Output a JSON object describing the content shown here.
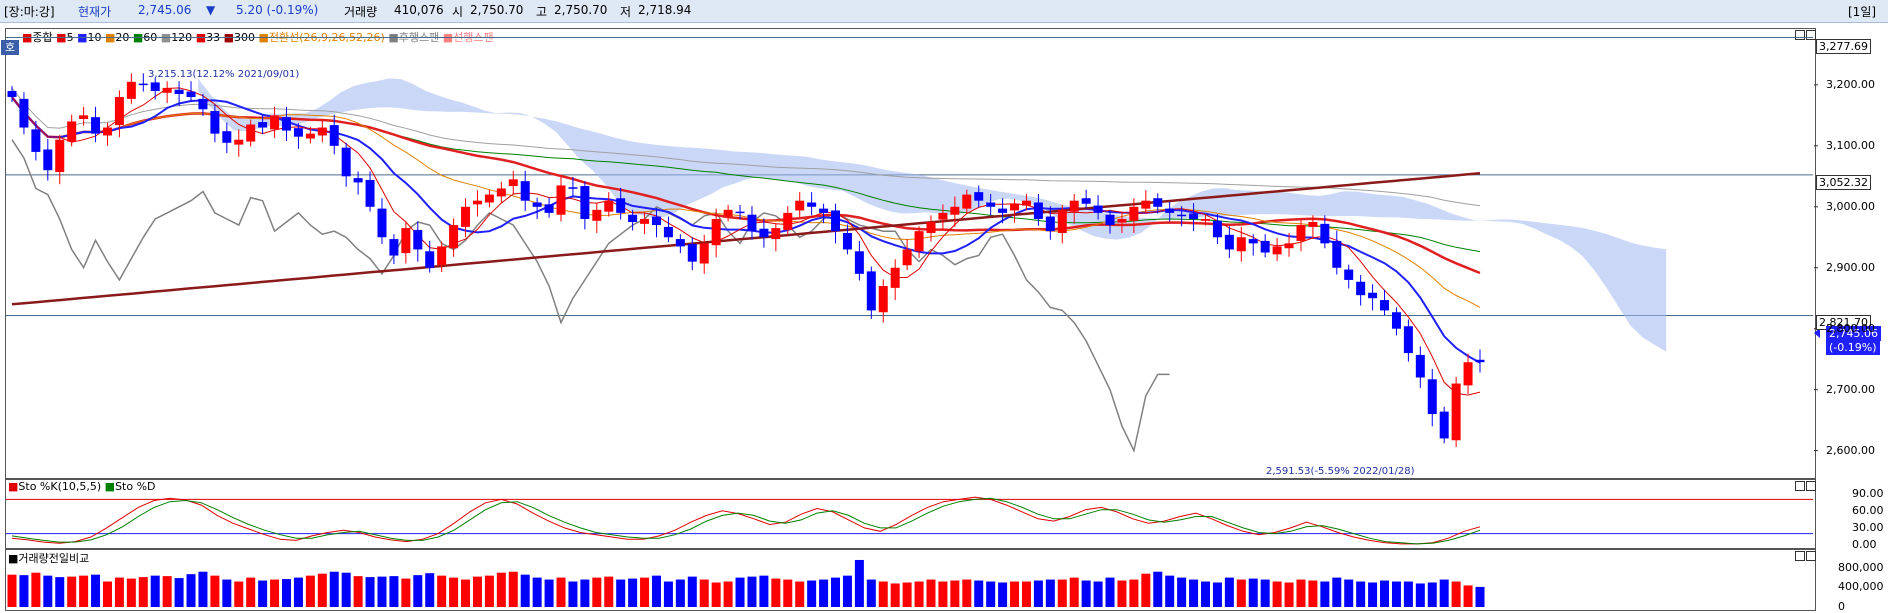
{
  "header": {
    "market": "[장:마:강]",
    "price_label": "현재가",
    "price": "2,745.06",
    "arrow": "▼",
    "change": "5.20 (-0.19%)",
    "volume_label": "거래량",
    "volume": "410,076",
    "open_label": "시",
    "open": "2,750.70",
    "high_label": "고",
    "high": "2,750.70",
    "low_label": "저",
    "low": "2,718.94",
    "period": "[1일]"
  },
  "price_panel": {
    "tab": "호",
    "legend": [
      "종합",
      "5",
      "10",
      "20",
      "60",
      "120",
      "33",
      "300",
      "전환선(26,9,26,52,26)",
      "후행스팬",
      "선행스팬"
    ],
    "legend_colors": [
      "#e00000",
      "#e00000",
      "#2020ff",
      "#e08000",
      "#008000",
      "#909090",
      "#e00000",
      "#a00000",
      "#e08000",
      "#808080",
      "#ff8080"
    ],
    "hlines": [
      {
        "value": 3277.69,
        "label": "3,277.69"
      },
      {
        "value": 3052.32,
        "label": "3,052.32"
      },
      {
        "value": 2821.7,
        "label": "2,821.70"
      }
    ],
    "current_label": "2,745.06",
    "current_change_label": "(-0.19%)",
    "high_annotation": "3,215.13(12.12% 2021/09/01)",
    "low_annotation": "2,591.53(-5.59% 2022/01/28)"
  },
  "chart_data": [
    {
      "type": "candlestick",
      "title": "",
      "ylim": [
        2560,
        3290
      ],
      "yticks": [
        "3,200.00",
        "3,100.00",
        "3,000.00",
        "2,900.00",
        "2,800.00",
        "2,700.00",
        "2,600.00"
      ],
      "ytick_values": [
        3200,
        3100,
        3000,
        2900,
        2800,
        2700,
        2600
      ],
      "close": [
        3180,
        3130,
        3090,
        3060,
        3110,
        3140,
        3150,
        3120,
        3130,
        3180,
        3205,
        3200,
        3190,
        3195,
        3185,
        3180,
        3160,
        3120,
        3105,
        3110,
        3135,
        3130,
        3150,
        3125,
        3115,
        3120,
        3130,
        3100,
        3050,
        3040,
        3000,
        2950,
        2920,
        2965,
        2930,
        2900,
        2935,
        2970,
        3000,
        3010,
        3020,
        3030,
        3045,
        3010,
        3000,
        2990,
        3035,
        3030,
        2980,
        2995,
        3010,
        2990,
        2975,
        2980,
        2970,
        2950,
        2935,
        2910,
        2940,
        2980,
        2995,
        2990,
        2960,
        2950,
        2965,
        2990,
        3010,
        3000,
        2990,
        2960,
        2930,
        2890,
        2830,
        2870,
        2900,
        2930,
        2960,
        2975,
        2990,
        3000,
        3020,
        3010,
        3000,
        2990,
        3005,
        3010,
        2980,
        2960,
        2995,
        3010,
        3005,
        2990,
        2970,
        2980,
        3000,
        3010,
        3000,
        2990,
        2985,
        2980,
        2980,
        2950,
        2930,
        2950,
        2940,
        2925,
        2935,
        2940,
        2970,
        2975,
        2940,
        2900,
        2880,
        2855,
        2850,
        2830,
        2800,
        2760,
        2720,
        2660,
        2620,
        2710,
        2745,
        2745.06
      ],
      "panel": "price"
    },
    {
      "type": "line",
      "title": "",
      "legend": [
        "Sto %K(10,5,5)",
        "Sto %D"
      ],
      "yticks": [
        "90.00",
        "60.00",
        "30.00",
        "0.00"
      ],
      "ytick_values": [
        90,
        60,
        30,
        0
      ],
      "ylim": [
        0,
        100
      ],
      "series": [
        {
          "name": "Sto %K(10,5,5)",
          "values": [
            12,
            9,
            5,
            3,
            6,
            14,
            30,
            48,
            66,
            78,
            82,
            79,
            70,
            52,
            38,
            28,
            18,
            10,
            8,
            16,
            22,
            26,
            22,
            14,
            9,
            6,
            10,
            20,
            38,
            58,
            74,
            80,
            72,
            56,
            42,
            30,
            22,
            18,
            14,
            10,
            10,
            16,
            26,
            40,
            52,
            60,
            55,
            46,
            36,
            40,
            54,
            64,
            58,
            44,
            30,
            24,
            36,
            52,
            66,
            76,
            80,
            84,
            80,
            70,
            58,
            46,
            42,
            50,
            62,
            66,
            58,
            46,
            38,
            42,
            50,
            56,
            46,
            34,
            24,
            18,
            22,
            30,
            40,
            32,
            22,
            14,
            8,
            4,
            2,
            2,
            4,
            12,
            24,
            32
          ]
        },
        {
          "name": "Sto %D",
          "values": [
            16,
            12,
            8,
            5,
            5,
            9,
            18,
            32,
            50,
            66,
            76,
            78,
            74,
            62,
            48,
            36,
            26,
            18,
            12,
            12,
            18,
            22,
            24,
            18,
            12,
            8,
            8,
            14,
            26,
            44,
            62,
            74,
            76,
            66,
            52,
            40,
            30,
            22,
            18,
            14,
            12,
            12,
            18,
            28,
            42,
            52,
            56,
            52,
            42,
            38,
            44,
            56,
            60,
            52,
            38,
            30,
            30,
            42,
            56,
            68,
            76,
            80,
            82,
            76,
            66,
            54,
            46,
            46,
            54,
            62,
            62,
            54,
            44,
            40,
            44,
            50,
            50,
            40,
            30,
            22,
            20,
            24,
            32,
            34,
            28,
            20,
            12,
            6,
            4,
            2,
            3,
            8,
            16,
            26
          ]
        }
      ],
      "panel": "stochastic"
    },
    {
      "type": "bar",
      "title": "",
      "legend": [
        "거래량전일비교"
      ],
      "yticks": [
        "800,000",
        "400,000",
        "0"
      ],
      "ytick_values": [
        800000,
        400000,
        0
      ],
      "ylim": [
        0,
        1000000
      ],
      "values": [
        660000,
        650000,
        700000,
        640000,
        610000,
        620000,
        640000,
        660000,
        520000,
        600000,
        580000,
        610000,
        640000,
        630000,
        590000,
        670000,
        720000,
        640000,
        560000,
        520000,
        600000,
        540000,
        560000,
        570000,
        600000,
        640000,
        680000,
        720000,
        700000,
        630000,
        610000,
        620000,
        630000,
        580000,
        650000,
        690000,
        640000,
        600000,
        560000,
        620000,
        640000,
        700000,
        720000,
        660000,
        600000,
        560000,
        600000,
        520000,
        560000,
        600000,
        620000,
        560000,
        580000,
        600000,
        640000,
        520000,
        560000,
        620000,
        560000,
        500000,
        520000,
        600000,
        620000,
        640000,
        580000,
        560000,
        520000,
        540000,
        560000,
        600000,
        640000,
        960000,
        560000,
        520000,
        480000,
        500000,
        520000,
        560000,
        520000,
        540000,
        560000,
        540000,
        520000,
        500000,
        520000,
        520000,
        540000,
        560000,
        560000,
        600000,
        540000,
        520000,
        600000,
        540000,
        560000,
        680000,
        720000,
        640000,
        600000,
        560000,
        520000,
        500000,
        600000,
        560000,
        580000,
        560000,
        520000,
        500000,
        560000,
        540000,
        520000,
        600000,
        560000,
        520000,
        500000,
        540000,
        520000,
        520000,
        480000,
        500000,
        560000,
        520000,
        440000,
        410076
      ],
      "up": [
        1,
        0,
        1,
        0,
        0,
        1,
        1,
        0,
        1,
        1,
        1,
        1,
        0,
        1,
        0,
        0,
        0,
        1,
        0,
        1,
        1,
        0,
        1,
        0,
        0,
        1,
        1,
        0,
        0,
        1,
        0,
        0,
        0,
        1,
        0,
        0,
        1,
        1,
        1,
        1,
        1,
        1,
        1,
        0,
        0,
        0,
        1,
        0,
        0,
        1,
        1,
        0,
        0,
        1,
        0,
        0,
        0,
        0,
        1,
        1,
        1,
        0,
        0,
        0,
        1,
        1,
        1,
        0,
        0,
        0,
        0,
        0,
        0,
        1,
        1,
        1,
        1,
        1,
        1,
        1,
        1,
        0,
        0,
        0,
        1,
        1,
        0,
        0,
        1,
        1,
        0,
        0,
        0,
        1,
        1,
        1,
        0,
        0,
        0,
        0,
        0,
        0,
        0,
        1,
        0,
        0,
        1,
        1,
        1,
        1,
        0,
        0,
        0,
        0,
        0,
        0,
        0,
        0,
        0,
        0,
        0,
        1,
        1,
        0
      ],
      "panel": "volume"
    }
  ]
}
